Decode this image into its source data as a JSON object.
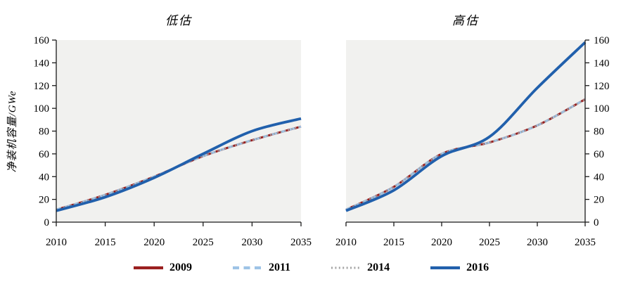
{
  "figure": {
    "background": "#FFFFFF",
    "plot_bg": "#F1F1EF",
    "axis_color": "#1A1A1A",
    "y_axis_label": "净装机容量/GWe"
  },
  "chart_data": [
    {
      "type": "line",
      "title": "低估",
      "ylabel": "净装机容量/GWe",
      "xlabel": "",
      "x": [
        2010,
        2015,
        2020,
        2025,
        2030,
        2035
      ],
      "xlim": [
        2010,
        2035
      ],
      "ylim": [
        0,
        160
      ],
      "yticks": [
        0,
        20,
        40,
        60,
        80,
        100,
        120,
        140,
        160
      ],
      "y_axis_side": "left",
      "grid": false,
      "legend_position": "bottom",
      "series": [
        {
          "name": "2009",
          "color": "#9A1F1F",
          "style": "solid",
          "width": 3,
          "values": [
            11,
            24,
            40,
            58,
            72,
            84
          ]
        },
        {
          "name": "2011",
          "color": "#9DC3E6",
          "style": "dashed",
          "width": 3,
          "values": [
            11,
            24,
            40,
            58,
            72,
            84
          ]
        },
        {
          "name": "2014",
          "color": "#A3A3A3",
          "style": "dotted",
          "width": 2,
          "values": [
            11,
            24,
            40,
            58,
            72,
            84
          ]
        },
        {
          "name": "2016",
          "color": "#2160AC",
          "style": "solid",
          "width": 3.8,
          "values": [
            10,
            22,
            39,
            60,
            80,
            91
          ]
        }
      ]
    },
    {
      "type": "line",
      "title": "高估",
      "ylabel": "",
      "xlabel": "",
      "x": [
        2010,
        2015,
        2020,
        2025,
        2030,
        2035
      ],
      "xlim": [
        2010,
        2035
      ],
      "ylim": [
        0,
        160
      ],
      "yticks": [
        0,
        20,
        40,
        60,
        80,
        100,
        120,
        140,
        160
      ],
      "y_axis_side": "right",
      "grid": false,
      "legend_position": "bottom",
      "series": [
        {
          "name": "2009",
          "color": "#9A1F1F",
          "style": "solid",
          "width": 3,
          "values": [
            11,
            31,
            60,
            70,
            85,
            108
          ]
        },
        {
          "name": "2011",
          "color": "#9DC3E6",
          "style": "dashed",
          "width": 3,
          "values": [
            11,
            31,
            60,
            70,
            85,
            108
          ]
        },
        {
          "name": "2014",
          "color": "#A3A3A3",
          "style": "dotted",
          "width": 2,
          "values": [
            11,
            31,
            60,
            70,
            85,
            108
          ]
        },
        {
          "name": "2016",
          "color": "#2160AC",
          "style": "solid",
          "width": 3.8,
          "values": [
            10,
            28,
            58,
            75,
            118,
            158
          ]
        }
      ]
    }
  ]
}
